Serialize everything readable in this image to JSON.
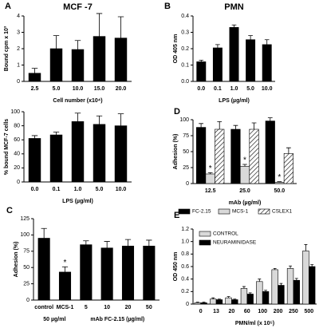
{
  "chart_data": [
    {
      "type": "bar",
      "panel": "A",
      "title": "MCF -7",
      "ylabel": "Bound cpm x 10³",
      "xlabel": "Cell number (x10⁴)",
      "categories": [
        "2.5",
        "5.0",
        "10.0",
        "15.0",
        "20.0"
      ],
      "values": [
        0.5,
        2.0,
        1.95,
        2.75,
        2.65
      ],
      "errors": [
        0.3,
        0.8,
        0.55,
        1.4,
        1.3
      ],
      "color": "#000000",
      "ylim": [
        0,
        4
      ],
      "yticks": [
        0,
        1,
        2,
        3,
        4
      ]
    },
    {
      "type": "bar",
      "ylabel": "% bound MCF-7 cells",
      "xlabel": "LPS (µg/ml)",
      "categories": [
        "0.0",
        "0.1",
        "1.0",
        "5.0",
        "10.0"
      ],
      "values": [
        62,
        67,
        86,
        82,
        80
      ],
      "errors": [
        4,
        4,
        12,
        12,
        17
      ],
      "color": "#000000",
      "ylim": [
        0,
        100
      ],
      "yticks": [
        0,
        20,
        40,
        60,
        80,
        100
      ]
    },
    {
      "type": "bar",
      "panel": "B",
      "title": "PMN",
      "ylabel": "OD 405 nm",
      "xlabel": "LPS (µg/ml)",
      "categories": [
        "0.0",
        "0.1",
        "1.0",
        "5.0",
        "10.0"
      ],
      "values": [
        0.12,
        0.205,
        0.33,
        0.255,
        0.225
      ],
      "errors": [
        0.01,
        0.02,
        0.015,
        0.025,
        0.03
      ],
      "color": "#000000",
      "ylim": [
        0,
        0.4
      ],
      "yticks": [
        {
          "value": 0,
          "label": "0.0"
        },
        0.1,
        0.2,
        0.3,
        0.4
      ]
    },
    {
      "type": "bar",
      "panel": "D",
      "ylabel": "Adhesion (%)",
      "xlabel": "mAb (µg/ml)",
      "categories": [
        "12.5",
        "25.0",
        "50.0"
      ],
      "series": [
        {
          "name": "FC-2.15",
          "color": "#000000",
          "values": [
            88,
            85,
            98
          ],
          "errors": [
            6,
            6,
            5
          ]
        },
        {
          "name": "MCS-1",
          "color": "#d9d9d9",
          "values": [
            15,
            27,
            2
          ],
          "errors": [
            2,
            3,
            1
          ]
        },
        {
          "name": "CSLEX1",
          "color": "#ffffff",
          "hatch": true,
          "values": [
            85,
            85,
            47
          ],
          "errors": [
            12,
            10,
            9
          ]
        }
      ],
      "annotations": [
        "*",
        "*",
        "*"
      ],
      "legend": "bottom",
      "ylim": [
        0,
        100
      ],
      "yticks": [
        0,
        25,
        50,
        75,
        100
      ]
    },
    {
      "type": "bar",
      "panel": "C",
      "ylabel": "Adhesion (%)",
      "categories": [
        "control",
        "MCS-1",
        "5",
        "10",
        "20",
        "50"
      ],
      "values": [
        95,
        43,
        85,
        80,
        83,
        83
      ],
      "errors": [
        15,
        8,
        6,
        10,
        10,
        9
      ],
      "color": "#000000",
      "annotations": [
        "*"
      ],
      "group_labels": [
        "50 µg/ml",
        "mAb FC-2.15 (µg/ml)"
      ],
      "ylim": [
        0,
        125
      ],
      "yticks": [
        0,
        25,
        50,
        75,
        100,
        125
      ]
    },
    {
      "type": "bar",
      "panel": "E",
      "ylabel": "OD 450 nm",
      "xlabel": "PMN/ml (x 10⁵)",
      "categories": [
        "0",
        "13",
        "20",
        "60",
        "100",
        "200",
        "250",
        "500"
      ],
      "series": [
        {
          "name": "CONTROL",
          "color": "#d9d9d9",
          "values": [
            0.02,
            0.08,
            0.1,
            0.25,
            0.36,
            0.55,
            0.57,
            0.85
          ],
          "errors": [
            0.01,
            0.02,
            0.02,
            0.03,
            0.04,
            0.02,
            0.04,
            0.1
          ]
        },
        {
          "name": "NEURAMINIDASE",
          "color": "#000000",
          "values": [
            0.02,
            0.07,
            0.07,
            0.16,
            0.2,
            0.3,
            0.38,
            0.6
          ],
          "errors": [
            0.01,
            0.01,
            0.01,
            0.02,
            0.02,
            0.03,
            0.03,
            0.03
          ]
        }
      ],
      "legend": "upper left",
      "ylim": [
        0,
        1.2
      ],
      "yticks": [
        0,
        0.2,
        0.4,
        0.6,
        0.8,
        {
          "value": 1,
          "label": "1.0"
        },
        1.2
      ]
    }
  ]
}
